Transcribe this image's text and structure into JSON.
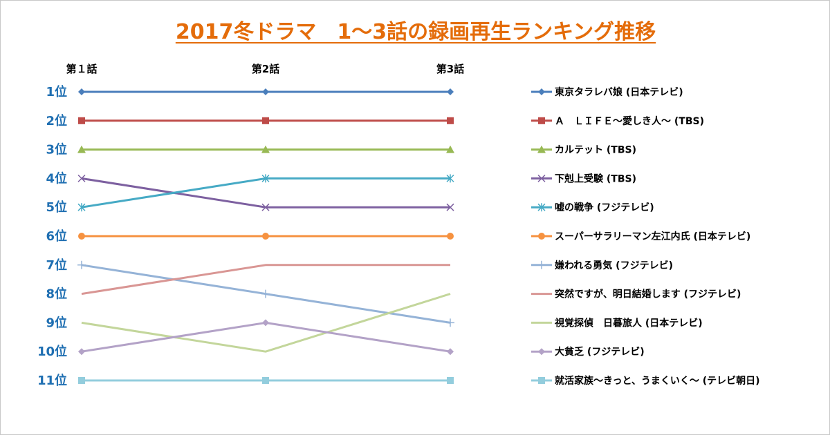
{
  "chart_data": {
    "type": "line",
    "title": "2017冬ドラマ　1～3話の録画再生ランキング推移",
    "x": [
      "第１話",
      "第2話",
      "第3話"
    ],
    "y_tick_labels": [
      "1位",
      "2位",
      "3位",
      "4位",
      "5位",
      "6位",
      "7位",
      "8位",
      "9位",
      "10位",
      "11位"
    ],
    "ylim": [
      1,
      11
    ],
    "y_inverted": true,
    "grid": false,
    "legend_position": "right",
    "series": [
      {
        "name": "東京タラレバ娘 (日本テレビ)",
        "values": [
          1,
          1,
          1
        ],
        "color": "#4a7ebb",
        "marker": "diamond"
      },
      {
        "name": "Ａ　ＬＩＦＥ～愛しき人～ (TBS)",
        "values": [
          2,
          2,
          2
        ],
        "color": "#be4b48",
        "marker": "square"
      },
      {
        "name": "カルテット (TBS)",
        "values": [
          3,
          3,
          3
        ],
        "color": "#98b954",
        "marker": "triangle"
      },
      {
        "name": "下剋上受験 (TBS)",
        "values": [
          4,
          5,
          5
        ],
        "color": "#7d60a0",
        "marker": "x"
      },
      {
        "name": "嘘の戦争 (フジテレビ)",
        "values": [
          5,
          4,
          4
        ],
        "color": "#46aac5",
        "marker": "star"
      },
      {
        "name": "スーパーサラリーマン左江内氏 (日本テレビ)",
        "values": [
          6,
          6,
          6
        ],
        "color": "#f69240",
        "marker": "circle"
      },
      {
        "name": "嫌われる勇気 (フジテレビ)",
        "values": [
          7,
          8,
          9
        ],
        "color": "#95b3d7",
        "marker": "plus"
      },
      {
        "name": "突然ですが、明日結婚します (フジテレビ)",
        "values": [
          8,
          7,
          7
        ],
        "color": "#d99694",
        "marker": "none"
      },
      {
        "name": "視覚探偵　日暮旅人 (日本テレビ)",
        "values": [
          9,
          10,
          8
        ],
        "color": "#c3d69b",
        "marker": "none"
      },
      {
        "name": "大貧乏 (フジテレビ)",
        "values": [
          10,
          9,
          10
        ],
        "color": "#b3a2c7",
        "marker": "diamond"
      },
      {
        "name": "就活家族～きっと、うまくいく～ (テレビ朝日)",
        "values": [
          11,
          11,
          11
        ],
        "color": "#93cddd",
        "marker": "square"
      }
    ]
  }
}
